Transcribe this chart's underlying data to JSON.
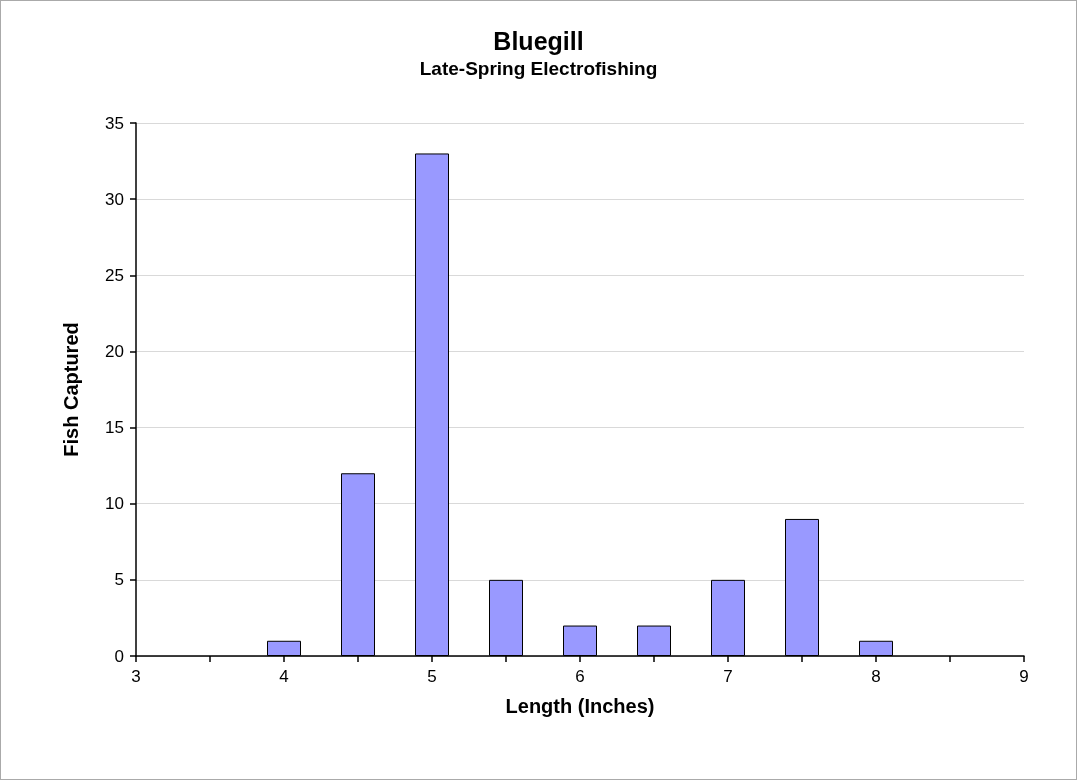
{
  "chart_data": {
    "type": "bar",
    "title": "Bluegill",
    "subtitle": "Late-Spring Electrofishing",
    "xlabel": "Length (Inches)",
    "ylabel": "Fish Captured",
    "x": [
      4,
      4.5,
      5,
      5.5,
      6,
      6.5,
      7,
      7.5,
      8
    ],
    "values": [
      1,
      12,
      33,
      5,
      2,
      2,
      5,
      9,
      1
    ],
    "color": "#9999ff",
    "xlim": [
      3,
      9
    ],
    "xticks": [
      3,
      {
        "value": 3.5,
        "label": null
      },
      4,
      {
        "value": 4.5,
        "label": null
      },
      5,
      {
        "value": 5.5,
        "label": null
      },
      6,
      {
        "value": 6.5,
        "label": null
      },
      7,
      {
        "value": 7.5,
        "label": null
      },
      8,
      {
        "value": 8.5,
        "label": null
      },
      9
    ],
    "ylim": [
      0,
      35
    ],
    "yticks": [
      0,
      5,
      10,
      15,
      20,
      25,
      30,
      35
    ],
    "grid": "y"
  }
}
